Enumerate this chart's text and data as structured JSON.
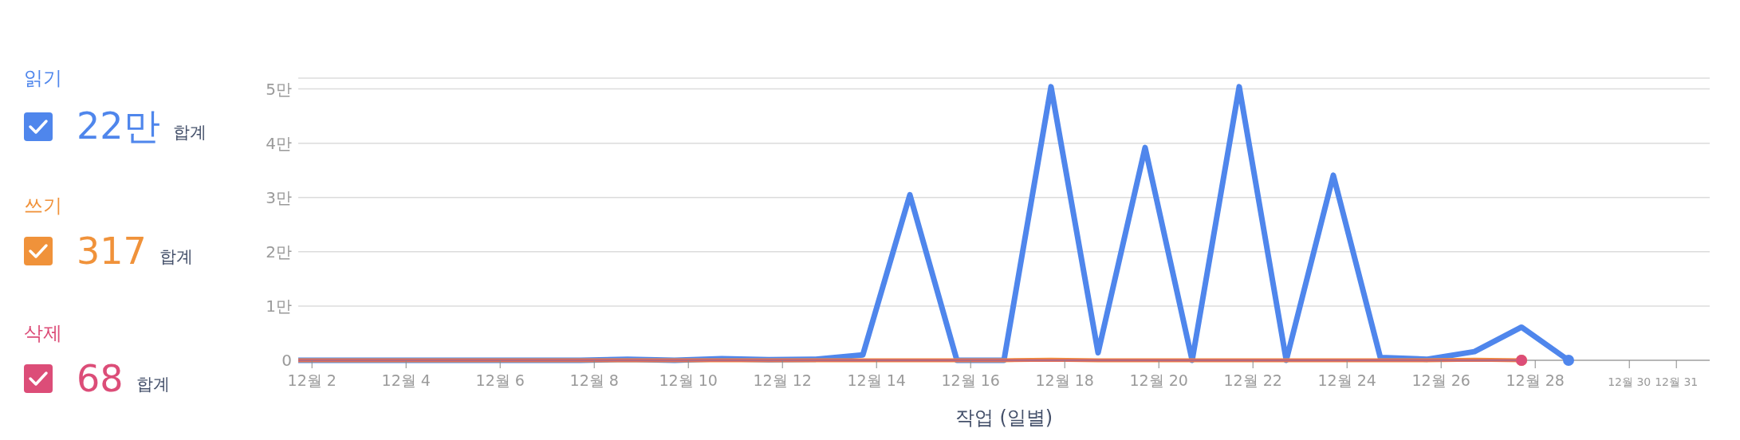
{
  "chart_data": {
    "type": "line",
    "xlabel": "작업 (일별)",
    "x": [
      "--12-01T17:00",
      "--12-02T17:00",
      "--12-03T17:00",
      "--12-04T17:00",
      "--12-05T17:00",
      "--12-06T17:00",
      "--12-07T17:00",
      "--12-08T17:00",
      "--12-09T17:00",
      "--12-10T17:00",
      "--12-11T17:00",
      "--12-12T17:00",
      "--12-13T17:00",
      "--12-14T17:00",
      "--12-15T17:00",
      "--12-16T17:00",
      "--12-17T17:00",
      "--12-18T17:00",
      "--12-19T17:00",
      "--12-20T17:00",
      "--12-21T17:00",
      "--12-22T17:00",
      "--12-23T17:00",
      "--12-24T17:00",
      "--12-25T17:00",
      "--12-26T17:00",
      "--12-27T17:00",
      "--12-28T17:00"
    ],
    "series": [
      {
        "name": "읽기",
        "color": "#4f86ec",
        "values": [
          0,
          0,
          0,
          0,
          0,
          0,
          0,
          0.02,
          0,
          0.03,
          0.01,
          0.02,
          0.1,
          3.05,
          0,
          0,
          5.04,
          0.14,
          3.92,
          0,
          5.04,
          0,
          3.41,
          0.05,
          0.02,
          0.16,
          0.61,
          0
        ]
      },
      {
        "name": "쓰기",
        "color": "#f0923a",
        "values": [
          0,
          0,
          0,
          0,
          0,
          0,
          0,
          0,
          0,
          0,
          0,
          0,
          0,
          0,
          0,
          0,
          0.01,
          0,
          0,
          0,
          0,
          0,
          0,
          0,
          0,
          0.01,
          0,
          null
        ]
      },
      {
        "name": "삭제",
        "color": "#dc4d78",
        "values": [
          0,
          0,
          0,
          0,
          0,
          0,
          0,
          0,
          0,
          0,
          0,
          0,
          0,
          0,
          0,
          0,
          0,
          0,
          0,
          0,
          0,
          0,
          0,
          0,
          0,
          0,
          0,
          null
        ]
      }
    ],
    "totals": [
      "22만",
      "317",
      "68"
    ],
    "annotations": [
      "합계",
      "합계",
      "합계"
    ],
    "xlim": [
      "--12-01T17:00",
      "--12-31T17:00"
    ],
    "xticks": [
      {
        "value": "--12-02",
        "label": "12월 2"
      },
      {
        "value": "--12-04",
        "label": "12월 4"
      },
      {
        "value": "--12-06",
        "label": "12월 6"
      },
      {
        "value": "--12-08",
        "label": "12월 8"
      },
      {
        "value": "--12-10",
        "label": "12월 10"
      },
      {
        "value": "--12-12",
        "label": "12월 12"
      },
      {
        "value": "--12-14",
        "label": "12월 14"
      },
      {
        "value": "--12-16",
        "label": "12월 16"
      },
      {
        "value": "--12-18",
        "label": "12월 18"
      },
      {
        "value": "--12-20",
        "label": "12월 20"
      },
      {
        "value": "--12-22",
        "label": "12월 22"
      },
      {
        "value": "--12-24",
        "label": "12월 24"
      },
      {
        "value": "--12-26",
        "label": "12월 26"
      },
      {
        "value": "--12-28",
        "label": "12월 28"
      },
      {
        "value": "--12-30",
        "label": "12월 30"
      },
      {
        "value": "--12-31",
        "label": "12월 31"
      }
    ],
    "ylim": [
      0,
      5.2
    ],
    "yticks": [
      0,
      {
        "value": 1,
        "label": "1만"
      },
      {
        "value": 2,
        "label": "2만"
      },
      {
        "value": 3,
        "label": "3만"
      },
      {
        "value": 4,
        "label": "4만"
      },
      {
        "value": 5,
        "label": "5만"
      }
    ],
    "grid": "y",
    "legend": "left",
    "marker": "none",
    "line_style": "solid"
  }
}
